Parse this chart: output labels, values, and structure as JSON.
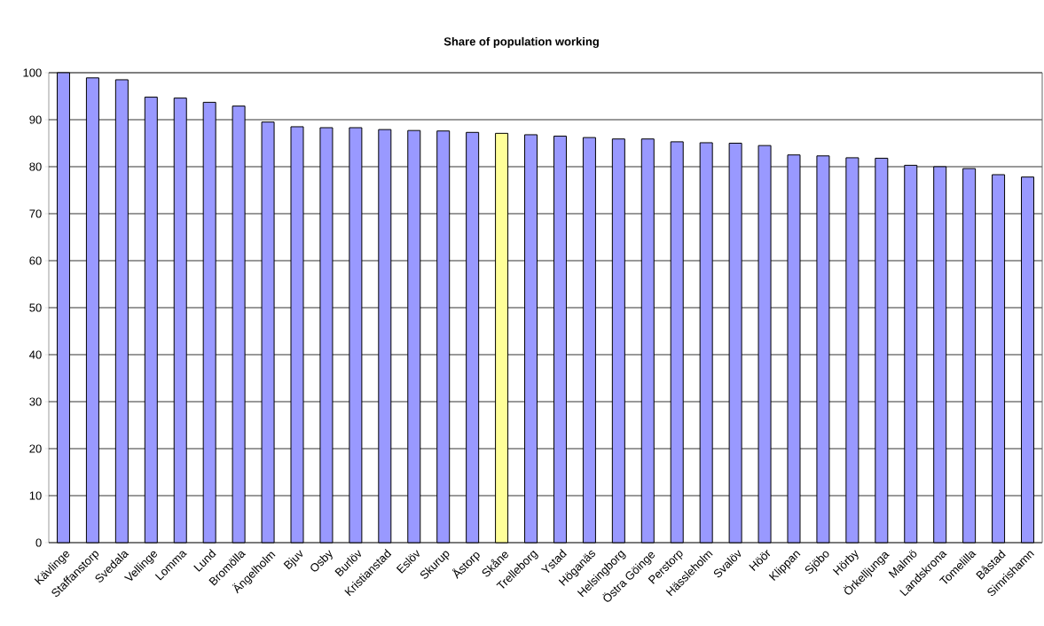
{
  "chart_data": {
    "type": "bar",
    "title": "Share of population working",
    "categories": [
      "Kävlinge",
      "Staffanstorp",
      "Svedala",
      "Vellinge",
      "Lomma",
      "Lund",
      "Bromölla",
      "Ängelholm",
      "Bjuv",
      "Osby",
      "Burlöv",
      "Kristianstad",
      "Eslöv",
      "Skurup",
      "Åstorp",
      "Skåne",
      "Trelleborg",
      "Ystad",
      "Höganäs",
      "Helsingborg",
      "Östra Göinge",
      "Perstorp",
      "Hässleholm",
      "Svalöv",
      "Höör",
      "Klippan",
      "Sjöbo",
      "Hörby",
      "Örkelljunga",
      "Malmö",
      "Landskrona",
      "Tomelilla",
      "Båstad",
      "Simrishamn"
    ],
    "values": [
      100,
      98.9,
      98.5,
      94.8,
      94.6,
      93.7,
      92.9,
      89.5,
      88.5,
      88.3,
      88.3,
      87.9,
      87.7,
      87.6,
      87.3,
      87.1,
      86.8,
      86.5,
      86.2,
      85.9,
      85.9,
      85.3,
      85.1,
      85.0,
      84.5,
      82.5,
      82.3,
      81.9,
      81.8,
      80.3,
      80.0,
      79.6,
      78.3,
      77.8
    ],
    "colors": [
      "#9999ff",
      "#9999ff",
      "#9999ff",
      "#9999ff",
      "#9999ff",
      "#9999ff",
      "#9999ff",
      "#9999ff",
      "#9999ff",
      "#9999ff",
      "#9999ff",
      "#9999ff",
      "#9999ff",
      "#9999ff",
      "#9999ff",
      "#ffff99",
      "#9999ff",
      "#9999ff",
      "#9999ff",
      "#9999ff",
      "#9999ff",
      "#9999ff",
      "#9999ff",
      "#9999ff",
      "#9999ff",
      "#9999ff",
      "#9999ff",
      "#9999ff",
      "#9999ff",
      "#9999ff",
      "#9999ff",
      "#9999ff",
      "#9999ff",
      "#9999ff"
    ],
    "ylim": [
      0,
      100
    ],
    "yticks": [
      0,
      10,
      20,
      30,
      40,
      50,
      60,
      70,
      80,
      90,
      100
    ],
    "grid": "y"
  }
}
